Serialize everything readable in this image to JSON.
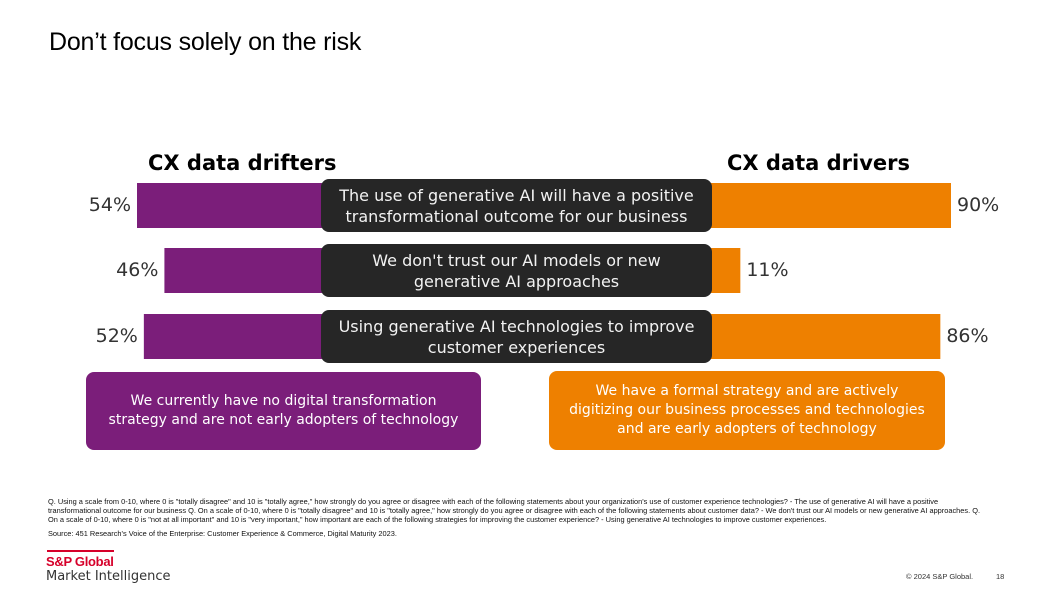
{
  "slide": {
    "title": "Don’t focus solely on the risk",
    "page_number": "18",
    "copyright": "© 2024 S&P Global."
  },
  "logo": {
    "line1": "S&P Global",
    "line2": "Market Intelligence"
  },
  "colors": {
    "drifters": "#7b1e7a",
    "drivers": "#ee8000",
    "statement_bg": "#262626",
    "logo_red": "#d6002a"
  },
  "chart_data": {
    "type": "bar",
    "title": "Don’t focus solely on the risk",
    "categories": [
      "The use of generative AI will have a positive transformational outcome for our business",
      "We don't trust our AI models or new generative AI approaches",
      "Using generative AI technologies to improve customer experiences"
    ],
    "series": [
      {
        "name": "CX data drifters",
        "values": [
          54,
          46,
          52
        ],
        "labels": [
          "54%",
          "46%",
          "52%"
        ],
        "description": "We currently have no digital transformation strategy and are not early adopters of technology"
      },
      {
        "name": "CX data drivers",
        "values": [
          90,
          11,
          86
        ],
        "labels": [
          "90%",
          "11%",
          "86%"
        ],
        "description": "We have a formal strategy and are actively digitizing our business processes and technologies and are early adopters of technology"
      }
    ],
    "unit": "%",
    "ylim": [
      0,
      100
    ]
  },
  "footnote": "Q. Using a scale from 0-10, where 0 is \"totally disagree\" and 10 is \"totally agree,\" how strongly do you agree or disagree with each of the following statements about your organization's use of customer experience technologies? - The use of generative AI will have a positive transformational outcome for our business Q. On a scale of 0-10, where 0 is \"totally disagree\" and 10 is \"totally agree,\" how strongly do you agree or disagree with each of the following statements about customer data? - We don't trust our AI models or new generative AI approaches. Q. On a scale of 0-10, where 0 is \"not at all important\" and 10 is \"very important,\" how important are each of the following strategies for improving the customer experience? - Using generative AI technologies to improve customer experiences.",
  "source": "Source: 451 Research's Voice of the Enterprise: Customer Experience & Commerce, Digital Maturity 2023."
}
